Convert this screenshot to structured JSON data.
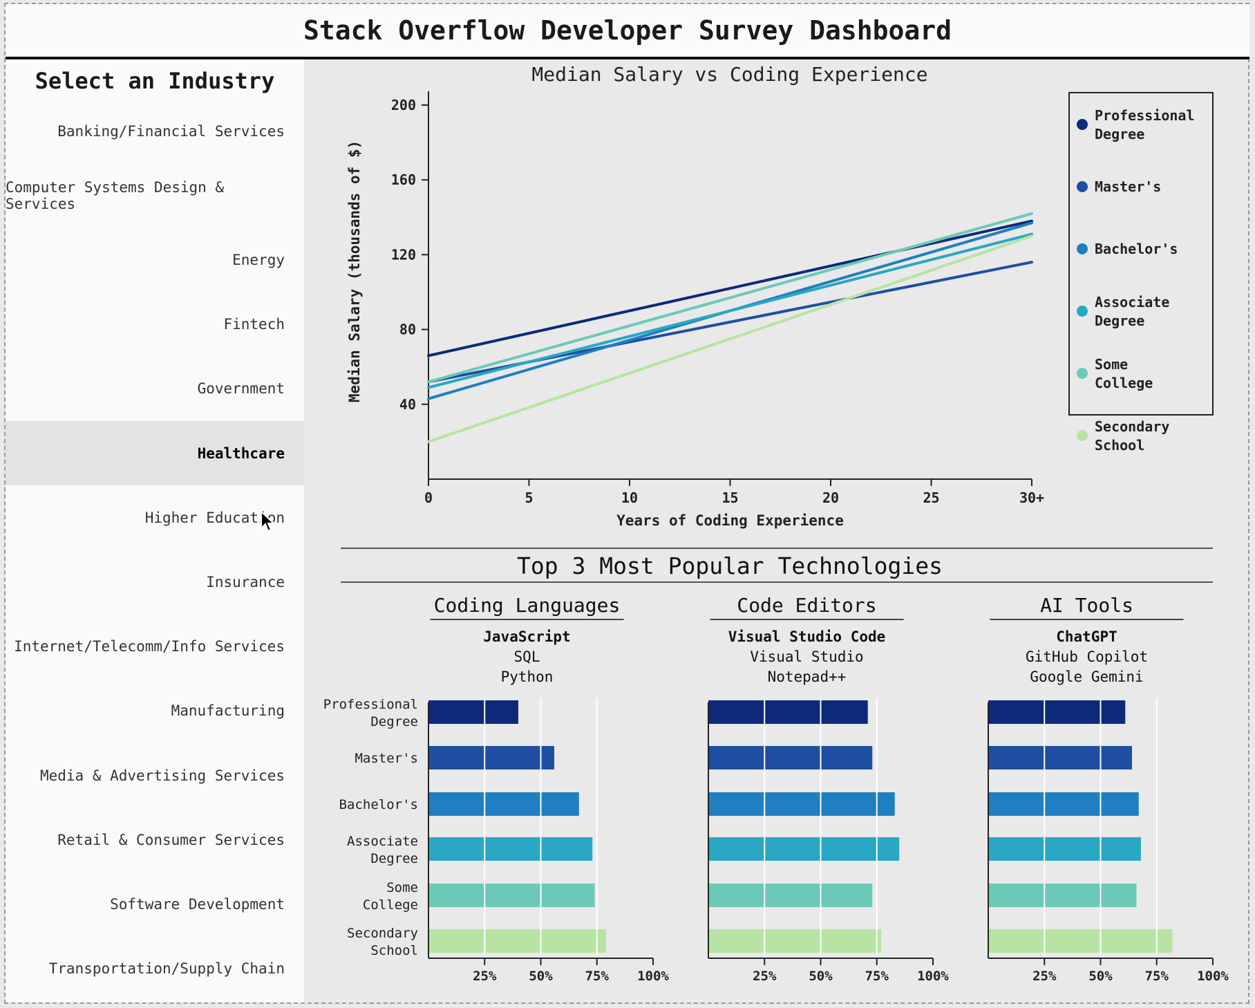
{
  "header": {
    "title": "Stack Overflow Developer Survey Dashboard"
  },
  "sidebar": {
    "title": "Select an Industry",
    "selected_index": 5,
    "items": [
      "Banking/Financial Services",
      "Computer Systems Design & Services",
      "Energy",
      "Fintech",
      "Government",
      "Healthcare",
      "Higher Education",
      "Insurance",
      "Internet/Telecomm/Info Services",
      "Manufacturing",
      "Media & Advertising Services",
      "Retail & Consumer Services",
      "Software Development",
      "Transportation/Supply Chain"
    ]
  },
  "chart_data": [
    {
      "type": "line",
      "title": "Median Salary vs Coding Experience",
      "xlabel": "Years of Coding Experience",
      "ylabel": "Median Salary (thousands of $)",
      "x_ticks": [
        "0",
        "5",
        "10",
        "15",
        "20",
        "25",
        "30+"
      ],
      "y_ticks": [
        "40",
        "80",
        "120",
        "160",
        "200"
      ],
      "xlim": [
        0,
        30
      ],
      "ylim": [
        0,
        200
      ],
      "grid": false,
      "legend": "right",
      "x": [
        0,
        30
      ],
      "series": [
        {
          "name": "Professional Degree",
          "color": "#0d2a7a",
          "values": [
            66,
            138
          ]
        },
        {
          "name": "Master's",
          "color": "#1e4fa3",
          "values": [
            52,
            116
          ]
        },
        {
          "name": "Bachelor's",
          "color": "#1f7fc1",
          "values": [
            43,
            137
          ]
        },
        {
          "name": "Associate Degree",
          "color": "#2aa7c2",
          "values": [
            49,
            131
          ]
        },
        {
          "name": "Some College",
          "color": "#6cc9b8",
          "values": [
            52,
            142
          ]
        },
        {
          "name": "Secondary School",
          "color": "#b7e4a3",
          "values": [
            20,
            130
          ]
        }
      ]
    },
    {
      "type": "bar",
      "title": "Coding Languages",
      "top_technologies": [
        "JavaScript",
        "SQL",
        "Python"
      ],
      "categories": [
        "Professional Degree",
        "Master's",
        "Bachelor's",
        "Associate Degree",
        "Some College",
        "Secondary School"
      ],
      "x_ticks": [
        "25%",
        "50%",
        "75%",
        "100%"
      ],
      "xlim": [
        0,
        100
      ],
      "series": [
        {
          "name": "JavaScript",
          "values": [
            40,
            56,
            67,
            73,
            74,
            79
          ]
        }
      ]
    },
    {
      "type": "bar",
      "title": "Code Editors",
      "top_technologies": [
        "Visual Studio Code",
        "Visual Studio",
        "Notepad++"
      ],
      "categories": [
        "Professional Degree",
        "Master's",
        "Bachelor's",
        "Associate Degree",
        "Some College",
        "Secondary School"
      ],
      "x_ticks": [
        "25%",
        "50%",
        "75%",
        "100%"
      ],
      "xlim": [
        0,
        100
      ],
      "series": [
        {
          "name": "Visual Studio Code",
          "values": [
            71,
            73,
            83,
            85,
            73,
            77
          ]
        }
      ]
    },
    {
      "type": "bar",
      "title": "AI Tools",
      "top_technologies": [
        "ChatGPT",
        "GitHub Copilot",
        "Google Gemini"
      ],
      "categories": [
        "Professional Degree",
        "Master's",
        "Bachelor's",
        "Associate Degree",
        "Some College",
        "Secondary School"
      ],
      "x_ticks": [
        "25%",
        "50%",
        "75%",
        "100%"
      ],
      "xlim": [
        0,
        100
      ],
      "series": [
        {
          "name": "ChatGPT",
          "values": [
            61,
            64,
            67,
            68,
            66,
            82
          ]
        }
      ]
    }
  ],
  "tech_section": {
    "title": "Top 3 Most Popular Technologies"
  },
  "colors": {
    "education": [
      "#0d2a7a",
      "#1e4fa3",
      "#1f7fc1",
      "#2aa7c2",
      "#6cc9b8",
      "#b7e4a3"
    ],
    "axis": "#222222"
  }
}
